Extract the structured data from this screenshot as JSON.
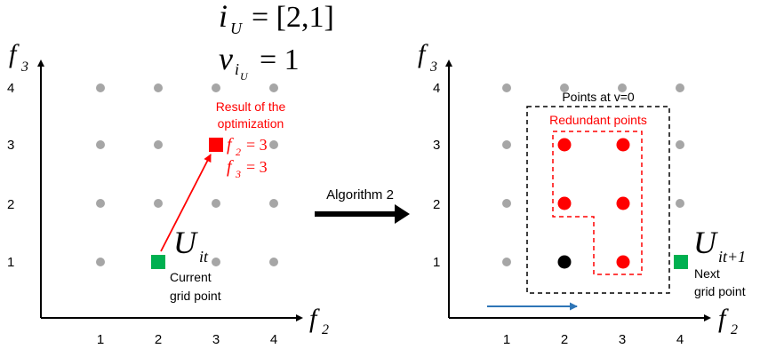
{
  "header": {
    "iU_main": "i",
    "iU_sub": "U",
    "iU_eq": "= [2,1]",
    "v_main": "v",
    "v_sub": "i",
    "v_subsub": "U",
    "v_eq": "= 1"
  },
  "axes": {
    "left": {
      "y_main": "f",
      "y_sub": "3",
      "x_main": "f",
      "x_sub": "2"
    },
    "right": {
      "y_main": "f",
      "y_sub": "3",
      "x_main": "f",
      "x_sub": "2"
    },
    "x_ticks": [
      "1",
      "2",
      "3",
      "4"
    ],
    "y_ticks": [
      "1",
      "2",
      "3",
      "4"
    ]
  },
  "left_panel": {
    "result_line1": "Result of the",
    "result_line2": "optimization",
    "f2_eq_main": "f",
    "f2_eq_sub": "2",
    "f2_eq_val": "= 3",
    "f3_eq_main": "f",
    "f3_eq_sub": "3",
    "f3_eq_val": "= 3",
    "U_main": "U",
    "U_sub": "it",
    "current_line1": "Current",
    "current_line2": "grid point"
  },
  "middle": {
    "algorithm_label": "Algorithm 2"
  },
  "right_panel": {
    "points_v0_label": "Points at v=0",
    "redundant_label": "Redundant points",
    "U_main": "U",
    "U_sub": "it+1",
    "next_line1": "Next",
    "next_line2": "grid point"
  },
  "colors": {
    "grid_point": "#a6a6a6",
    "red": "#ff0000",
    "green": "#00b050",
    "black": "#000000",
    "blue_arrow": "#2e75b6"
  }
}
